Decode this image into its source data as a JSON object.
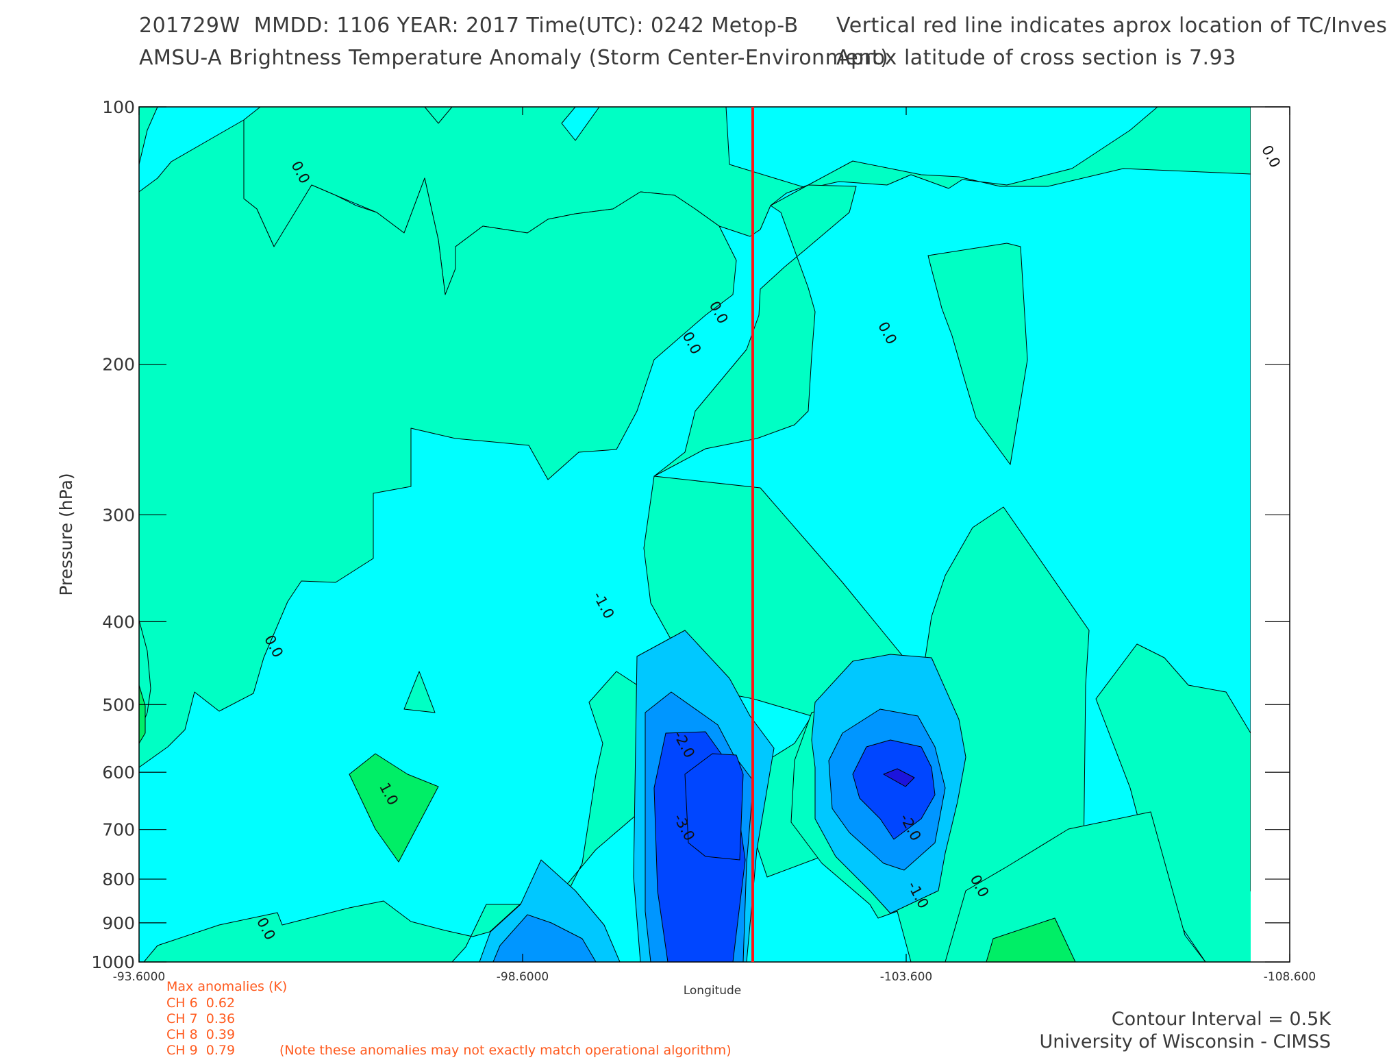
{
  "header": {
    "line1": "201729W  MMDD: 1106 YEAR: 2017 Time(UTC): 0242 Metop-B",
    "line2": "AMSU-A Brightness Temperature Anomaly (Storm Center-Environment)",
    "line3": "Vertical red line indicates aprox location of TC/Invest",
    "line4": "Aprox latitude of cross section is 7.93"
  },
  "colors": {
    "c_pos1": "#00ee66",
    "c_pos0": "#00ffc4",
    "c_neg0": "#00ffff",
    "c_neg1": "#00c8ff",
    "c_neg2": "#0096ff",
    "c_neg3": "#0046ff",
    "c_neg4": "#1c14dc",
    "marker": "#ff1414",
    "anomaly_text": "#ff5a1e"
  },
  "chart_data": {
    "type": "heatmap",
    "xlabel": "Longitude",
    "ylabel": "Pressure (hPa)",
    "x_ticks": [
      "-93.6000",
      "-98.6000",
      "-103.600",
      "-108.600"
    ],
    "x_tick_values": [
      -93.6,
      -98.6,
      -103.6,
      -108.6
    ],
    "y_ticks": [
      "100",
      "200",
      "300",
      "400",
      "500",
      "600",
      "700",
      "800",
      "900",
      "1000"
    ],
    "y_tick_values": [
      100,
      200,
      300,
      400,
      500,
      600,
      700,
      800,
      900,
      1000
    ],
    "xlim": [
      -93.6,
      -108.6
    ],
    "ylim": [
      100,
      1000
    ],
    "y_scale": "log",
    "storm_longitude": -101.6,
    "contour_interval": 0.5,
    "contour_labels": [
      {
        "text": "0.0",
        "x": -95.65,
        "y": 120
      },
      {
        "text": "0.0",
        "x": -101.1,
        "y": 175
      },
      {
        "text": "0.0",
        "x": -100.75,
        "y": 190
      },
      {
        "text": "0.0",
        "x": -103.3,
        "y": 185
      },
      {
        "text": "0.0",
        "x": -108.3,
        "y": 115
      },
      {
        "text": "0.0",
        "x": -95.3,
        "y": 430
      },
      {
        "text": "0.0",
        "x": -95.2,
        "y": 920
      },
      {
        "text": "0.0",
        "x": -104.5,
        "y": 820
      },
      {
        "text": "1.0",
        "x": -96.8,
        "y": 640
      },
      {
        "text": "-1.0",
        "x": -99.6,
        "y": 385
      },
      {
        "text": "-2.0",
        "x": -100.65,
        "y": 560
      },
      {
        "text": "-3.0",
        "x": -100.65,
        "y": 700
      },
      {
        "text": "-2.0",
        "x": -103.6,
        "y": 700
      },
      {
        "text": "-1.0",
        "x": -103.7,
        "y": 840
      }
    ]
  },
  "max_anomalies": {
    "title": "Max anomalies (K)",
    "items": [
      {
        "label": "CH 6",
        "value": "0.62"
      },
      {
        "label": "CH 7",
        "value": "0.36"
      },
      {
        "label": "CH 8",
        "value": "0.39"
      },
      {
        "label": "CH 9",
        "value": "0.79"
      }
    ],
    "note": "(Note these anomalies may not exactly match operational algorithm)"
  },
  "footer": {
    "contour_interval": "Contour Interval = 0.5K",
    "credit": "University of Wisconsin - CIMSS"
  }
}
